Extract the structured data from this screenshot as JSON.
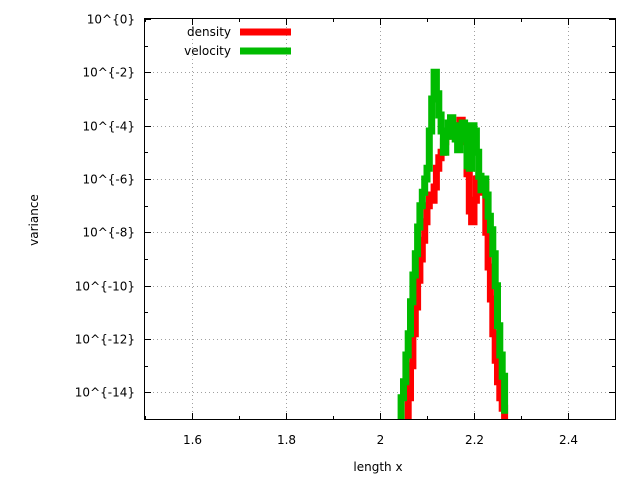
{
  "chart_data": {
    "type": "line",
    "title": "",
    "xlabel": "length x",
    "ylabel": "variance",
    "xlim": [
      1.5,
      2.5
    ],
    "ylim_exponent": [
      -15,
      0
    ],
    "y_scale": "log10",
    "x_ticks": [
      "1.6",
      "1.8",
      "2",
      "2.2",
      "2.4"
    ],
    "x_tick_values": [
      1.6,
      1.8,
      2.0,
      2.2,
      2.4
    ],
    "y_ticks": [
      "10^{0}",
      "10^{-2}",
      "10^{-4}",
      "10^{-6}",
      "10^{-8}",
      "10^{-10}",
      "10^{-12}",
      "10^{-14}"
    ],
    "y_tick_exponents": [
      0,
      -2,
      -4,
      -6,
      -8,
      -10,
      -12,
      -14
    ],
    "grid": true,
    "legend_position": "top-left",
    "series": [
      {
        "name": "density",
        "color": "#ff0000",
        "x": [
          2.055,
          2.06,
          2.065,
          2.07,
          2.075,
          2.08,
          2.085,
          2.09,
          2.095,
          2.1,
          2.105,
          2.11,
          2.115,
          2.12,
          2.125,
          2.13,
          2.135,
          2.14,
          2.145,
          2.15,
          2.155,
          2.16,
          2.165,
          2.17,
          2.175,
          2.18,
          2.185,
          2.19,
          2.195,
          2.2,
          2.205,
          2.21,
          2.215,
          2.22,
          2.225,
          2.23,
          2.235,
          2.24,
          2.245,
          2.25,
          2.255,
          2.26,
          2.265
        ],
        "y_exp": [
          -15.0,
          -14.2,
          -13.0,
          -11.8,
          -10.8,
          -9.8,
          -9.0,
          -8.3,
          -7.6,
          -7.0,
          -6.6,
          -6.8,
          -6.3,
          -5.6,
          -5.2,
          -5.0,
          -4.6,
          -4.4,
          -4.3,
          -4.1,
          -4.2,
          -4.2,
          -4.0,
          -3.8,
          -4.0,
          -4.6,
          -5.8,
          -7.2,
          -7.6,
          -6.8,
          -6.0,
          -6.0,
          -6.5,
          -6.2,
          -8.0,
          -9.3,
          -10.5,
          -11.8,
          -12.8,
          -13.6,
          -14.2,
          -14.6,
          -15.0
        ]
      },
      {
        "name": "velocity",
        "color": "#00bb00",
        "x": [
          2.04,
          2.045,
          2.05,
          2.055,
          2.06,
          2.065,
          2.07,
          2.075,
          2.08,
          2.085,
          2.09,
          2.095,
          2.1,
          2.105,
          2.11,
          2.115,
          2.12,
          2.125,
          2.13,
          2.135,
          2.14,
          2.145,
          2.15,
          2.155,
          2.16,
          2.165,
          2.17,
          2.175,
          2.18,
          2.185,
          2.19,
          2.195,
          2.2,
          2.205,
          2.21,
          2.215,
          2.22,
          2.225,
          2.23,
          2.235,
          2.24,
          2.245,
          2.25,
          2.255,
          2.26,
          2.265
        ],
        "y_exp": [
          -15.0,
          -14.2,
          -13.6,
          -12.6,
          -11.8,
          -10.6,
          -9.6,
          -8.8,
          -7.8,
          -7.0,
          -6.5,
          -6.0,
          -5.6,
          -4.2,
          -3.0,
          -2.0,
          -2.8,
          -3.6,
          -4.2,
          -5.0,
          -4.4,
          -3.9,
          -3.7,
          -4.0,
          -4.5,
          -4.9,
          -4.2,
          -3.9,
          -4.5,
          -5.5,
          -5.6,
          -4.0,
          -4.2,
          -5.0,
          -5.9,
          -6.4,
          -6.0,
          -6.6,
          -7.4,
          -7.9,
          -8.8,
          -10.0,
          -11.5,
          -12.6,
          -13.4,
          -14.8
        ]
      }
    ]
  }
}
